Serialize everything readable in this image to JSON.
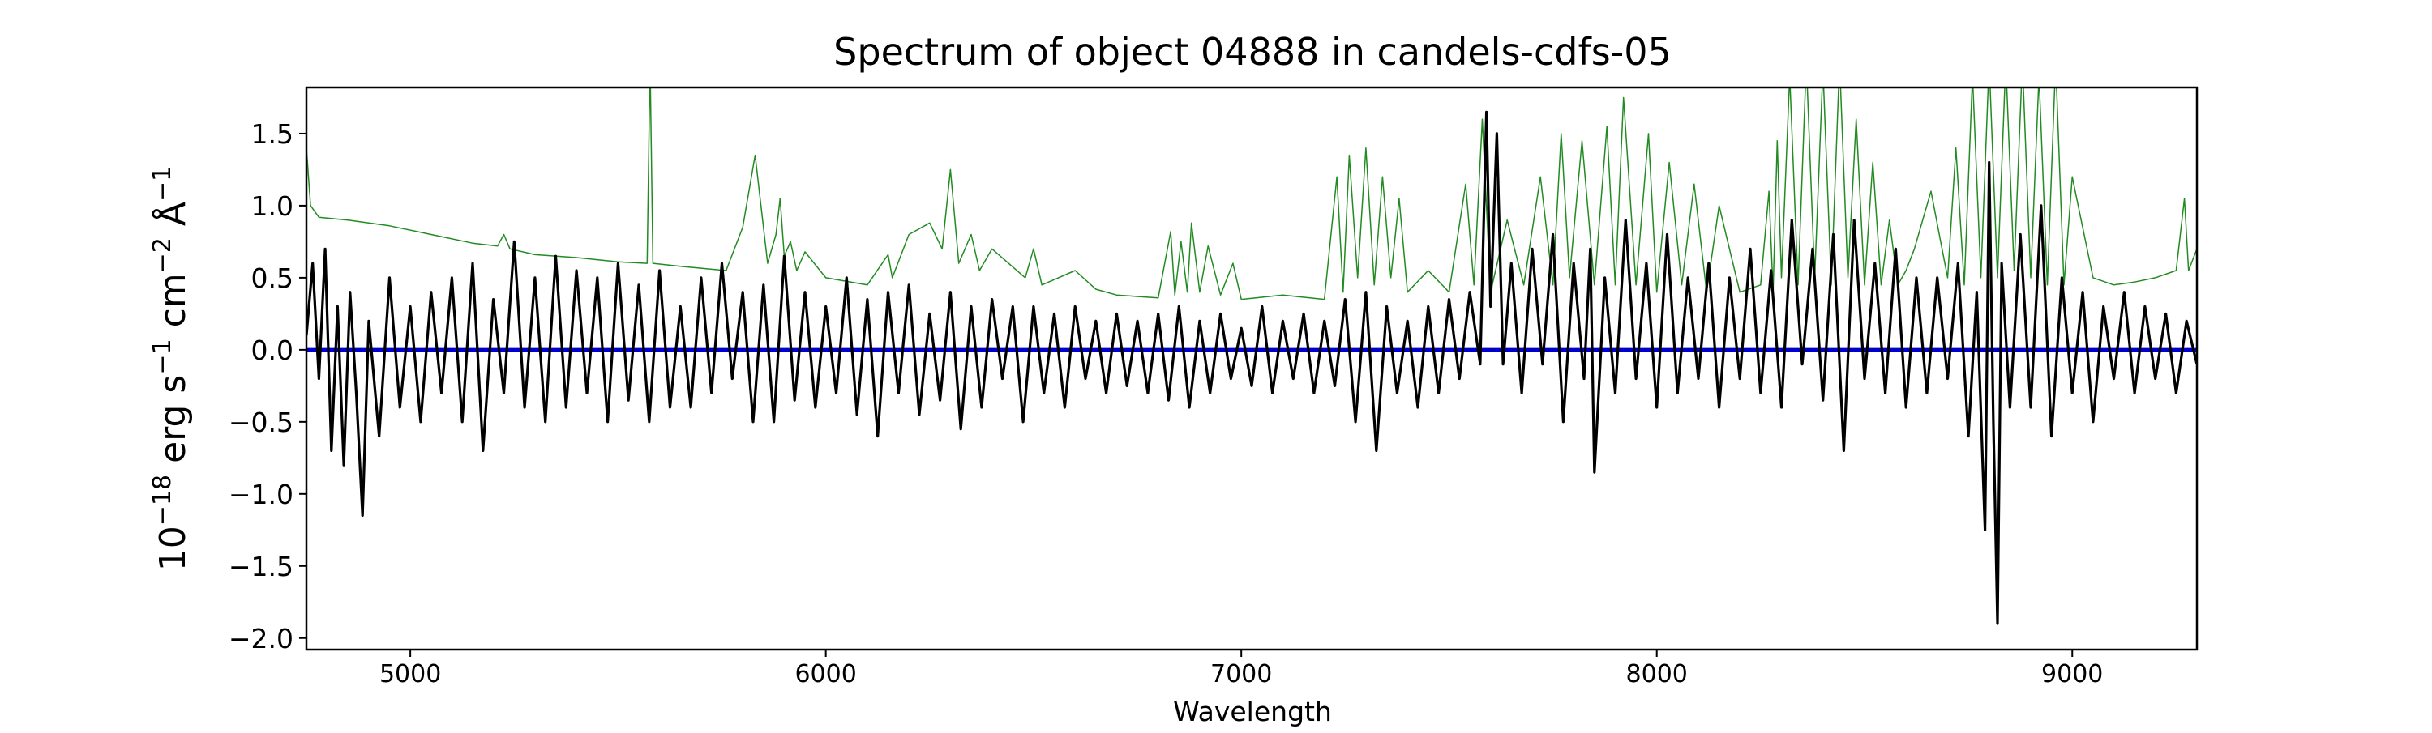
{
  "chart_data": {
    "type": "line",
    "title": "Spectrum of object 04888 in candels-cdfs-05",
    "xlabel": "Wavelength",
    "ylabel_base": "10",
    "ylabel_exp1": "−18",
    "ylabel_mid1": " erg s",
    "ylabel_exp2": "−1",
    "ylabel_mid2": " cm",
    "ylabel_exp3": "−2",
    "ylabel_mid3": " Å",
    "ylabel_exp4": "−1",
    "xlim": [
      4750,
      9300
    ],
    "ylim": [
      -2.08,
      1.82
    ],
    "x_ticks": [
      5000,
      6000,
      7000,
      8000,
      9000
    ],
    "x_tick_labels": [
      "5000",
      "6000",
      "7000",
      "8000",
      "9000"
    ],
    "y_ticks": [
      -2.0,
      -1.5,
      -1.0,
      -0.5,
      0.0,
      0.5,
      1.0,
      1.5
    ],
    "y_tick_labels": [
      "−2.0",
      "−1.5",
      "−1.0",
      "−0.5",
      "0.0",
      "0.5",
      "1.0",
      "1.5"
    ],
    "grid": false,
    "series": [
      {
        "color": "#228b22",
        "style": "thin",
        "x": [
          4750,
          4760,
          4780,
          4850,
          4950,
          5050,
          5150,
          5210,
          5225,
          5240,
          5300,
          5400,
          5500,
          5570,
          5577,
          5584,
          5650,
          5760,
          5800,
          5830,
          5860,
          5880,
          5890,
          5900,
          5915,
          5930,
          5950,
          6000,
          6100,
          6150,
          6160,
          6200,
          6250,
          6280,
          6300,
          6320,
          6350,
          6370,
          6400,
          6480,
          6500,
          6520,
          6560,
          6600,
          6650,
          6700,
          6800,
          6830,
          6840,
          6855,
          6870,
          6880,
          6900,
          6920,
          6950,
          6980,
          7000,
          7100,
          7200,
          7230,
          7245,
          7260,
          7280,
          7300,
          7320,
          7340,
          7360,
          7380,
          7400,
          7450,
          7500,
          7540,
          7560,
          7580,
          7600,
          7640,
          7680,
          7720,
          7750,
          7770,
          7790,
          7820,
          7850,
          7880,
          7900,
          7920,
          7950,
          7980,
          8000,
          8030,
          8060,
          8090,
          8120,
          8150,
          8200,
          8250,
          8270,
          8280,
          8290,
          8300,
          8320,
          8340,
          8360,
          8380,
          8400,
          8420,
          8440,
          8460,
          8480,
          8500,
          8520,
          8540,
          8560,
          8580,
          8600,
          8620,
          8640,
          8660,
          8680,
          8700,
          8720,
          8740,
          8760,
          8780,
          8800,
          8820,
          8840,
          8860,
          8880,
          8900,
          8920,
          8940,
          8960,
          8980,
          9000,
          9050,
          9100,
          9150,
          9200,
          9250,
          9270,
          9280,
          9300
        ],
        "y": [
          1.4,
          1.0,
          0.92,
          0.9,
          0.86,
          0.8,
          0.74,
          0.72,
          0.8,
          0.7,
          0.66,
          0.64,
          0.61,
          0.6,
          2.0,
          0.6,
          0.58,
          0.55,
          0.85,
          1.35,
          0.6,
          0.8,
          1.05,
          0.65,
          0.75,
          0.55,
          0.68,
          0.5,
          0.45,
          0.66,
          0.5,
          0.8,
          0.88,
          0.7,
          1.25,
          0.6,
          0.8,
          0.55,
          0.7,
          0.5,
          0.7,
          0.45,
          0.5,
          0.55,
          0.42,
          0.38,
          0.36,
          0.82,
          0.38,
          0.75,
          0.4,
          0.88,
          0.4,
          0.72,
          0.38,
          0.6,
          0.35,
          0.38,
          0.35,
          1.2,
          0.4,
          1.35,
          0.5,
          1.4,
          0.45,
          1.2,
          0.5,
          1.05,
          0.4,
          0.55,
          0.4,
          1.15,
          0.45,
          1.6,
          0.4,
          0.9,
          0.45,
          1.2,
          0.45,
          1.5,
          0.5,
          1.45,
          0.45,
          1.55,
          0.45,
          1.75,
          0.45,
          1.5,
          0.4,
          1.3,
          0.45,
          1.15,
          0.4,
          1.0,
          0.4,
          0.45,
          1.1,
          0.4,
          1.45,
          0.5,
          1.9,
          0.45,
          2.0,
          0.5,
          1.95,
          0.45,
          2.0,
          0.5,
          1.6,
          0.45,
          1.3,
          0.45,
          0.9,
          0.45,
          0.55,
          0.7,
          0.9,
          1.1,
          0.8,
          0.5,
          1.4,
          0.45,
          1.9,
          0.5,
          2.0,
          0.5,
          2.0,
          0.55,
          2.0,
          0.5,
          1.9,
          0.45,
          2.0,
          0.45,
          1.2,
          0.5,
          0.45,
          0.47,
          0.5,
          0.55,
          1.05,
          0.55,
          0.7
        ]
      },
      {
        "color": "#0000cc",
        "style": "thick",
        "x": [
          4750,
          9300
        ],
        "y": [
          0.0,
          0.0
        ]
      },
      {
        "color": "#000000",
        "style": "medium",
        "x": [
          4750,
          4765,
          4780,
          4795,
          4810,
          4825,
          4840,
          4855,
          4870,
          4885,
          4900,
          4925,
          4950,
          4975,
          5000,
          5025,
          5050,
          5075,
          5100,
          5125,
          5150,
          5175,
          5200,
          5225,
          5250,
          5275,
          5300,
          5325,
          5350,
          5375,
          5400,
          5425,
          5450,
          5475,
          5500,
          5525,
          5550,
          5575,
          5600,
          5625,
          5650,
          5675,
          5700,
          5725,
          5750,
          5775,
          5800,
          5825,
          5850,
          5875,
          5900,
          5925,
          5950,
          5975,
          6000,
          6025,
          6050,
          6075,
          6100,
          6125,
          6150,
          6175,
          6200,
          6225,
          6250,
          6275,
          6300,
          6325,
          6350,
          6375,
          6400,
          6425,
          6450,
          6475,
          6500,
          6525,
          6550,
          6575,
          6600,
          6625,
          6650,
          6675,
          6700,
          6725,
          6750,
          6775,
          6800,
          6825,
          6850,
          6875,
          6900,
          6925,
          6950,
          6975,
          7000,
          7025,
          7050,
          7075,
          7100,
          7125,
          7150,
          7175,
          7200,
          7225,
          7250,
          7275,
          7300,
          7325,
          7350,
          7375,
          7400,
          7425,
          7450,
          7475,
          7500,
          7525,
          7550,
          7575,
          7590,
          7600,
          7615,
          7630,
          7650,
          7675,
          7700,
          7725,
          7750,
          7775,
          7800,
          7825,
          7840,
          7850,
          7875,
          7900,
          7925,
          7950,
          7975,
          8000,
          8025,
          8050,
          8075,
          8100,
          8125,
          8150,
          8175,
          8200,
          8225,
          8250,
          8275,
          8300,
          8325,
          8350,
          8375,
          8400,
          8425,
          8450,
          8475,
          8500,
          8525,
          8550,
          8575,
          8600,
          8625,
          8650,
          8675,
          8700,
          8725,
          8750,
          8770,
          8790,
          8800,
          8810,
          8820,
          8830,
          8850,
          8875,
          8900,
          8925,
          8950,
          8975,
          9000,
          9025,
          9050,
          9075,
          9100,
          9125,
          9150,
          9175,
          9200,
          9225,
          9250,
          9275,
          9300
        ],
        "y": [
          0.1,
          0.6,
          -0.2,
          0.7,
          -0.7,
          0.3,
          -0.8,
          0.4,
          -0.3,
          -1.15,
          0.2,
          -0.6,
          0.5,
          -0.4,
          0.3,
          -0.5,
          0.4,
          -0.3,
          0.5,
          -0.5,
          0.6,
          -0.7,
          0.35,
          -0.3,
          0.75,
          -0.4,
          0.5,
          -0.5,
          0.65,
          -0.4,
          0.55,
          -0.3,
          0.5,
          -0.5,
          0.6,
          -0.35,
          0.45,
          -0.5,
          0.55,
          -0.4,
          0.3,
          -0.4,
          0.5,
          -0.3,
          0.6,
          -0.2,
          0.4,
          -0.5,
          0.45,
          -0.5,
          0.65,
          -0.35,
          0.4,
          -0.4,
          0.3,
          -0.3,
          0.5,
          -0.45,
          0.35,
          -0.6,
          0.4,
          -0.3,
          0.45,
          -0.45,
          0.25,
          -0.35,
          0.4,
          -0.55,
          0.3,
          -0.4,
          0.35,
          -0.2,
          0.3,
          -0.5,
          0.3,
          -0.3,
          0.25,
          -0.4,
          0.3,
          -0.2,
          0.2,
          -0.3,
          0.25,
          -0.25,
          0.2,
          -0.3,
          0.25,
          -0.35,
          0.3,
          -0.4,
          0.2,
          -0.3,
          0.25,
          -0.2,
          0.15,
          -0.25,
          0.3,
          -0.3,
          0.2,
          -0.2,
          0.25,
          -0.3,
          0.2,
          -0.25,
          0.35,
          -0.5,
          0.4,
          -0.7,
          0.3,
          -0.3,
          0.2,
          -0.4,
          0.3,
          -0.3,
          0.35,
          -0.2,
          0.4,
          -0.1,
          1.65,
          0.3,
          1.5,
          -0.1,
          0.6,
          -0.3,
          0.7,
          -0.1,
          0.8,
          -0.5,
          0.6,
          -0.2,
          0.7,
          -0.85,
          0.5,
          -0.3,
          0.9,
          -0.2,
          0.6,
          -0.4,
          0.8,
          -0.3,
          0.5,
          -0.2,
          0.6,
          -0.4,
          0.5,
          -0.2,
          0.7,
          -0.3,
          0.55,
          -0.4,
          0.9,
          -0.1,
          0.7,
          -0.35,
          0.8,
          -0.7,
          0.9,
          -0.2,
          0.6,
          -0.3,
          0.7,
          -0.4,
          0.5,
          -0.3,
          0.5,
          -0.2,
          0.6,
          -0.6,
          0.4,
          -1.25,
          1.3,
          -0.5,
          -1.9,
          0.6,
          -0.4,
          0.8,
          -0.4,
          1.0,
          -0.6,
          0.5,
          -0.3,
          0.4,
          -0.5,
          0.3,
          -0.2,
          0.4,
          -0.3,
          0.3,
          -0.2,
          0.25,
          -0.3,
          0.2,
          -0.1
        ]
      }
    ]
  }
}
